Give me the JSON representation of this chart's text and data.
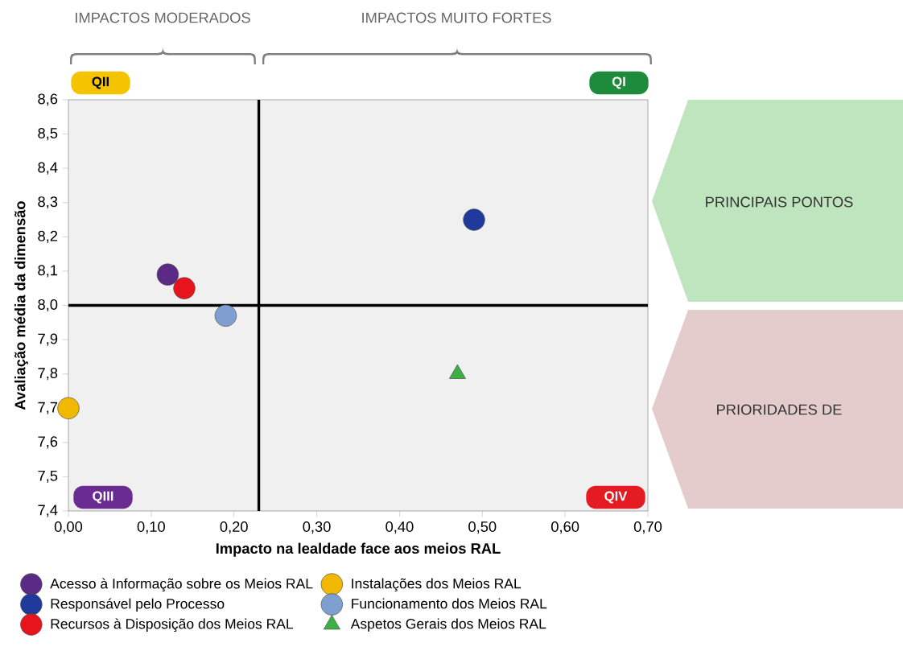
{
  "chart_data": {
    "type": "scatter",
    "xlabel": "Impacto na lealdade face aos meios RAL",
    "ylabel": "Avaliação média da dimensão",
    "xlim": [
      0,
      0.7
    ],
    "ylim": [
      7.4,
      8.6
    ],
    "xticks": [
      {
        "value": 0,
        "label": "0,00"
      },
      {
        "value": 0.1,
        "label": "0,10"
      },
      {
        "value": 0.2,
        "label": "0,20"
      },
      {
        "value": 0.3,
        "label": "0,30"
      },
      {
        "value": 0.4,
        "label": "0,40"
      },
      {
        "value": 0.5,
        "label": "0,50"
      },
      {
        "value": 0.6,
        "label": "0,60"
      },
      {
        "value": 0.7,
        "label": "0,70"
      }
    ],
    "yticks": [
      {
        "value": 7.4,
        "label": "7,4"
      },
      {
        "value": 7.5,
        "label": "7,5"
      },
      {
        "value": 7.6,
        "label": "7,6"
      },
      {
        "value": 7.7,
        "label": "7,7"
      },
      {
        "value": 7.8,
        "label": "7,8"
      },
      {
        "value": 7.9,
        "label": "7,9"
      },
      {
        "value": 8.0,
        "label": "8,0"
      },
      {
        "value": 8.1,
        "label": "8,1"
      },
      {
        "value": 8.2,
        "label": "8,2"
      },
      {
        "value": 8.3,
        "label": "8,3"
      },
      {
        "value": 8.4,
        "label": "8,4"
      },
      {
        "value": 8.5,
        "label": "8,5"
      },
      {
        "value": 8.6,
        "label": "8,6"
      }
    ],
    "grid": false,
    "legend": "bottom",
    "series": [
      {
        "name": "Acesso à Informação sobre os Meios RAL",
        "color": "#5b2a86",
        "marker": "circle",
        "x": [
          0.12
        ],
        "values": [
          8.09
        ]
      },
      {
        "name": "Instalações dos Meios RAL",
        "color": "#f0b800",
        "marker": "circle",
        "x": [
          0.0
        ],
        "values": [
          7.7
        ]
      },
      {
        "name": "Responsável pelo Processo",
        "color": "#1f3a9a",
        "marker": "circle",
        "x": [
          0.49
        ],
        "values": [
          8.25
        ]
      },
      {
        "name": "Funcionamento dos Meios RAL",
        "color": "#7f9fd0",
        "marker": "circle",
        "x": [
          0.19
        ],
        "values": [
          7.97
        ]
      },
      {
        "name": "Recursos à Disposição dos Meios RAL",
        "color": "#e8141c",
        "marker": "circle",
        "x": [
          0.14
        ],
        "values": [
          8.05
        ]
      },
      {
        "name": "Aspetos Gerais dos Meios RAL",
        "color": "#3cb043",
        "marker": "triangle",
        "x": [
          0.47
        ],
        "values": [
          7.8
        ]
      }
    ],
    "ref_lines": [
      {
        "axis": "x",
        "value": 0.23,
        "color": "#000000"
      },
      {
        "axis": "y",
        "value": 8.0,
        "color": "#000000"
      }
    ],
    "annotations": [
      "IMPACTOS MODERADOS",
      "IMPACTOS MUITO FORTES",
      "QII",
      "QI",
      "QIII",
      "QIV",
      "PRINCIPAIS PONTOS",
      "PRIORIDADES DE"
    ]
  }
}
